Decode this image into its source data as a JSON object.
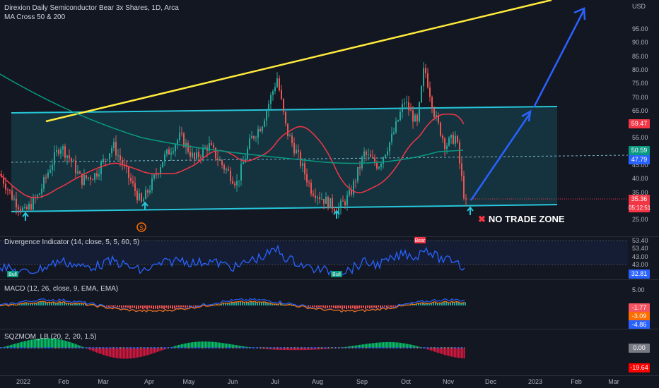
{
  "header": {
    "title": "Direxion Daily Semiconductor Bear 3x Shares, 1D, Arca",
    "indicator": "MA Cross 50 & 200",
    "currency": "USD"
  },
  "main_pane": {
    "annotation": "NO TRADE ZONE",
    "annotation_icon": "x-mark-icon",
    "signal_icon": "S",
    "price_ticks": [
      "95.00",
      "90.00",
      "85.00",
      "80.00",
      "75.00",
      "70.00",
      "65.00",
      "60.00",
      "55.00",
      "50.00",
      "45.00",
      "40.00",
      "35.00",
      "30.00",
      "25.00"
    ],
    "badges": {
      "ma_red": {
        "value": "59.47",
        "color": "#f23645"
      },
      "ma_green": {
        "value": "50.59",
        "color": "#089981"
      },
      "dashed": {
        "value": "47.79",
        "color": "#2962ff"
      },
      "price": {
        "value": "35.36",
        "color": "#f23645"
      },
      "countdown": {
        "value": "05:12:51",
        "color": "#f23645"
      }
    }
  },
  "divergence_pane": {
    "legend": "Divergence Indicator (14, close, 5, 5, 60, 5)",
    "labels": [
      "Bull",
      "Bull",
      "Bear"
    ],
    "ticks": [
      "53.40",
      "53.40",
      "43.00",
      "43.00"
    ],
    "value_badge": {
      "value": "32.81",
      "color": "#2962ff"
    }
  },
  "macd_pane": {
    "legend": "MACD (12, 26, close, 9, EMA, EMA)",
    "tick": "5.00",
    "badges": [
      {
        "value": "-1.77",
        "color": "#f7525f"
      },
      {
        "value": "-3.09",
        "color": "#ff6d00"
      },
      {
        "value": "-4.86",
        "color": "#2962ff"
      }
    ]
  },
  "sqz_pane": {
    "legend": "SQZMOM_LB (20, 2, 20, 1.5)",
    "badges": [
      {
        "value": "0.00",
        "color": "#787b86"
      },
      {
        "value": "-19.64",
        "color": "#ff0000"
      }
    ]
  },
  "time_axis": [
    "2022",
    "Feb",
    "Mar",
    "Apr",
    "May",
    "Jun",
    "Jul",
    "Aug",
    "Sep",
    "Oct",
    "Nov",
    "Dec",
    "2023",
    "Feb",
    "Mar"
  ],
  "colors": {
    "background": "#131722",
    "channel": "#26c6da",
    "trendline": "#ffeb3b",
    "projection": "#2962ff",
    "ma50": "#f23645",
    "ma200": "#089981",
    "up_candle": "#26a69a",
    "down_candle": "#ef5350"
  }
}
